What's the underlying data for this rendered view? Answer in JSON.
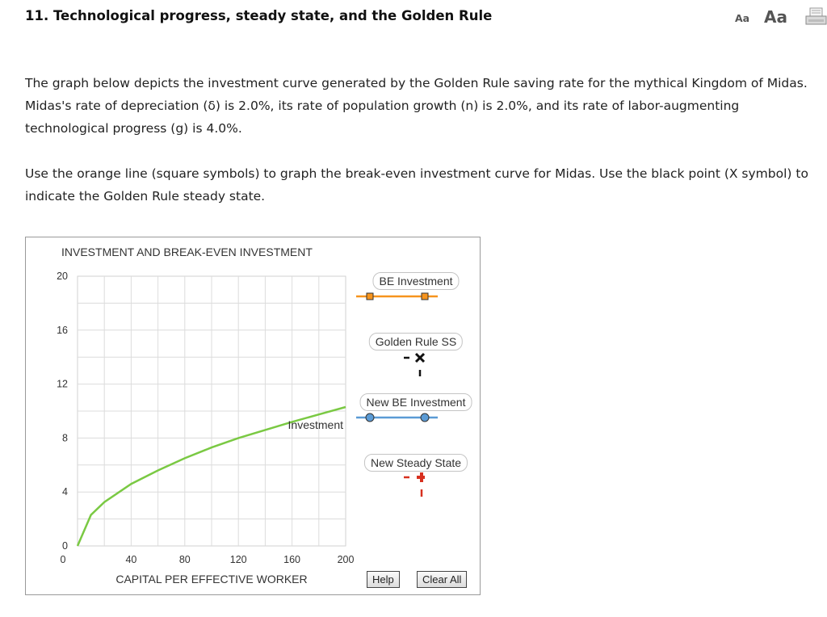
{
  "question": {
    "title": "11. Technological progress, steady state, and the Golden Rule",
    "paragraph1": "The graph below depicts the investment curve generated by the Golden Rule saving rate for the mythical Kingdom of Midas. Midas's rate of depreciation (δ) is 2.0%, its rate of population growth (n) is 2.0%, and its rate of labor-augmenting technological progress (g) is 4.0%.",
    "paragraph2": "Use the orange line (square symbols) to graph the break-even investment curve for Midas. Use the black point (X symbol) to indicate the Golden Rule steady state."
  },
  "toolbar": {
    "font_small_label": "Aa",
    "font_large_label": "Aa",
    "print_icon": "print-icon"
  },
  "chart_data": {
    "type": "line",
    "title": "INVESTMENT AND BREAK-EVEN INVESTMENT",
    "xlabel": "CAPITAL PER EFFECTIVE WORKER",
    "ylabel": "",
    "xlim": [
      0,
      200
    ],
    "ylim": [
      0,
      20
    ],
    "x_ticks": [
      0,
      40,
      80,
      120,
      160,
      200
    ],
    "y_ticks": [
      0,
      4,
      8,
      12,
      16,
      20
    ],
    "x_tick_labels": [
      "0",
      "40",
      "80",
      "120",
      "160",
      "200"
    ],
    "y_tick_labels": [
      "0",
      "4",
      "8",
      "12",
      "16",
      "20"
    ],
    "grid": true,
    "series": [
      {
        "name": "Investment",
        "color": "#7ac943",
        "points": [
          [
            0,
            0
          ],
          [
            10,
            2.3
          ],
          [
            20,
            3.25
          ],
          [
            40,
            4.6
          ],
          [
            60,
            5.6
          ],
          [
            80,
            6.5
          ],
          [
            100,
            7.3
          ],
          [
            120,
            8.0
          ],
          [
            140,
            8.6
          ],
          [
            160,
            9.2
          ],
          [
            180,
            9.75
          ],
          [
            200,
            10.3
          ]
        ]
      }
    ]
  },
  "tools": [
    {
      "label": "BE Investment",
      "color": "#f7941d",
      "symbol": "square"
    },
    {
      "label": "Golden Rule SS",
      "color": "#111111",
      "symbol": "x"
    },
    {
      "label": "New BE Investment",
      "color": "#5b9bd5",
      "symbol": "circle"
    },
    {
      "label": "New Steady State",
      "color": "#d7301f",
      "symbol": "plus"
    }
  ],
  "buttons": {
    "help_label": "Help",
    "clear_label": "Clear All"
  }
}
